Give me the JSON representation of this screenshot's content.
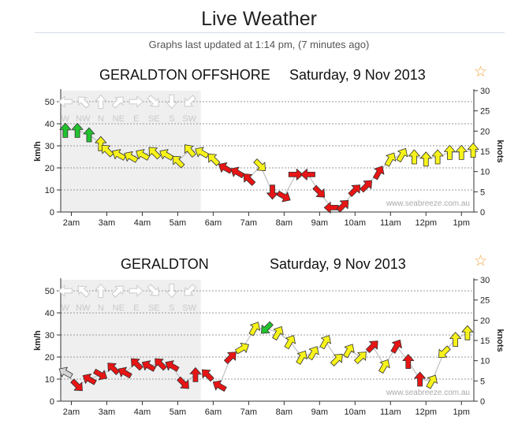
{
  "header": {
    "title": "Live Weather",
    "updated": "Graphs last updated at 1:14 pm, (7 minutes ago)"
  },
  "icons": {
    "favourite": "star-icon",
    "wind": "wind-arrow-icon"
  },
  "colors": {
    "calm": "#22c22e",
    "moderate": "#f7f31a",
    "strong": "#e81515",
    "history": "#d4d4d4",
    "night_shade": "#efefef",
    "gridline": "#999999"
  },
  "chart_data": [
    {
      "type": "line",
      "station": "GERALDTON OFFSHORE",
      "date": "Saturday, 9 Nov 2013",
      "ylabel": "km/h",
      "y2label": "knots",
      "ylim": [
        0,
        55
      ],
      "y2lim": [
        0,
        30
      ],
      "yticks": [
        "0",
        "10",
        "20",
        "30",
        "40",
        "50"
      ],
      "y2ticks": [
        "0",
        "5",
        "10",
        "15",
        "20",
        "25",
        "30"
      ],
      "xticks": [
        "2am",
        "3am",
        "4am",
        "5am",
        "6am",
        "7am",
        "8am",
        "9am",
        "10am",
        "11am",
        "12pm",
        "1pm"
      ],
      "xrange": [
        1.7,
        13.35
      ],
      "grid_km_h": [
        10,
        20,
        30,
        40,
        50
      ],
      "legend": "direction compass row",
      "compass": [
        "W",
        "NW",
        "N",
        "NE",
        "E",
        "SE",
        "S",
        "SW"
      ],
      "night_until": 5.65,
      "credit": "www.seabreeze.com.au",
      "x": [
        1.83,
        2.17,
        2.5,
        2.83,
        3.0,
        3.33,
        3.67,
        4.0,
        4.33,
        4.67,
        5.0,
        5.33,
        5.67,
        6.0,
        6.33,
        6.67,
        7.0,
        7.33,
        7.67,
        8.0,
        8.33,
        8.67,
        9.0,
        9.33,
        9.67,
        10.0,
        10.33,
        10.67,
        11.0,
        11.33,
        11.67,
        12.0,
        12.33,
        12.67,
        13.0,
        13.33
      ],
      "speed": [
        37,
        37,
        35,
        31,
        28,
        26,
        25,
        26,
        27,
        26,
        23,
        28,
        27,
        24,
        20,
        18,
        15,
        21,
        9,
        7,
        17,
        17,
        9,
        2,
        3,
        10,
        12,
        18,
        24,
        26,
        25,
        24,
        25,
        27,
        27,
        28
      ],
      "direction": [
        0,
        0,
        0,
        0,
        315,
        300,
        300,
        300,
        315,
        300,
        315,
        320,
        300,
        315,
        300,
        300,
        315,
        135,
        180,
        120,
        90,
        270,
        135,
        270,
        45,
        45,
        45,
        30,
        30,
        30,
        0,
        0,
        0,
        0,
        0,
        0
      ],
      "category": [
        "calm",
        "calm",
        "calm",
        "moderate",
        "moderate",
        "moderate",
        "moderate",
        "moderate",
        "moderate",
        "moderate",
        "moderate",
        "moderate",
        "moderate",
        "moderate",
        "strong",
        "strong",
        "strong",
        "moderate",
        "strong",
        "strong",
        "strong",
        "strong",
        "strong",
        "strong",
        "strong",
        "strong",
        "strong",
        "strong",
        "moderate",
        "moderate",
        "moderate",
        "moderate",
        "moderate",
        "moderate",
        "moderate",
        "moderate"
      ]
    },
    {
      "type": "line",
      "station": "GERALDTON",
      "date": "Saturday, 9 Nov 2013",
      "ylabel": "km/h",
      "y2label": "knots",
      "ylim": [
        0,
        55
      ],
      "y2lim": [
        0,
        30
      ],
      "yticks": [
        "0",
        "10",
        "20",
        "30",
        "40",
        "50"
      ],
      "y2ticks": [
        "0",
        "5",
        "10",
        "15",
        "20",
        "25",
        "30"
      ],
      "xticks": [
        "2am",
        "3am",
        "4am",
        "5am",
        "6am",
        "7am",
        "8am",
        "9am",
        "10am",
        "11am",
        "12pm",
        "1pm"
      ],
      "xrange": [
        1.7,
        13.35
      ],
      "grid_km_h": [
        10,
        20,
        30,
        40,
        50
      ],
      "legend": "direction compass row",
      "compass": [
        "W",
        "NW",
        "N",
        "NE",
        "E",
        "SE",
        "S",
        "SW"
      ],
      "night_until": 5.65,
      "credit": "www.seabreeze.com.au",
      "x": [
        1.83,
        2.17,
        2.5,
        2.83,
        3.17,
        3.5,
        3.83,
        4.17,
        4.5,
        4.83,
        5.17,
        5.5,
        5.83,
        6.17,
        6.5,
        6.83,
        7.17,
        7.5,
        7.83,
        8.17,
        8.5,
        8.83,
        9.17,
        9.5,
        9.83,
        10.17,
        10.5,
        10.83,
        11.17,
        11.5,
        11.83,
        12.17,
        12.5,
        12.83,
        13.17
      ],
      "speed": [
        13,
        7,
        10,
        12,
        15,
        13,
        17,
        16,
        17,
        16,
        8,
        12,
        12,
        7,
        20,
        24,
        33,
        33,
        31,
        27,
        20,
        22,
        27,
        19,
        23,
        20,
        25,
        16,
        25,
        18,
        10,
        9,
        22,
        28,
        31
      ],
      "direction": [
        300,
        135,
        300,
        120,
        315,
        300,
        315,
        300,
        315,
        300,
        135,
        0,
        315,
        300,
        45,
        60,
        30,
        225,
        30,
        30,
        30,
        30,
        30,
        45,
        30,
        45,
        45,
        30,
        30,
        0,
        0,
        30,
        225,
        0,
        0
      ],
      "category": [
        "history",
        "strong",
        "strong",
        "strong",
        "strong",
        "strong",
        "strong",
        "strong",
        "strong",
        "strong",
        "strong",
        "strong",
        "strong",
        "strong",
        "strong",
        "moderate",
        "moderate",
        "calm",
        "moderate",
        "moderate",
        "moderate",
        "moderate",
        "moderate",
        "moderate",
        "moderate",
        "moderate",
        "strong",
        "moderate",
        "strong",
        "strong",
        "strong",
        "moderate",
        "moderate",
        "moderate",
        "moderate"
      ]
    }
  ]
}
